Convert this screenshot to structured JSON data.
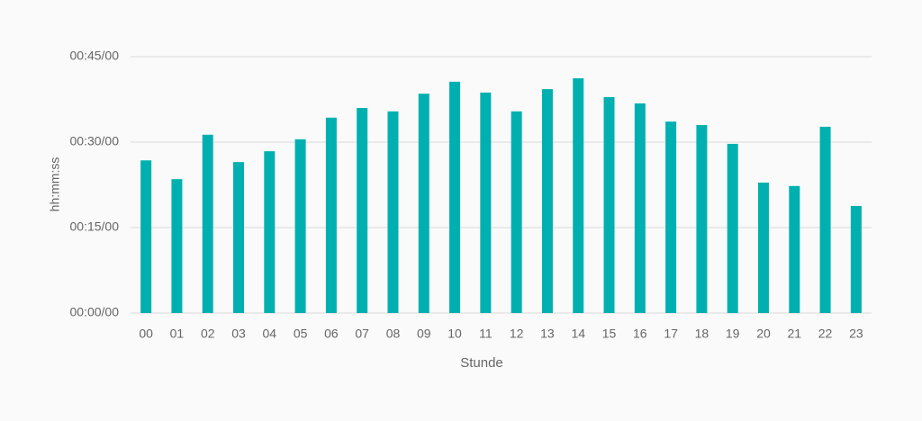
{
  "chart_data": {
    "type": "bar",
    "x_label": "Stunde",
    "y_label": "hh:mm:ss",
    "categories": [
      "00",
      "01",
      "02",
      "03",
      "04",
      "05",
      "06",
      "07",
      "08",
      "09",
      "10",
      "11",
      "12",
      "13",
      "14",
      "15",
      "16",
      "17",
      "18",
      "19",
      "20",
      "21",
      "22",
      "23"
    ],
    "values": [
      26.8,
      23.5,
      31.3,
      26.5,
      28.4,
      30.5,
      34.3,
      36.0,
      35.4,
      38.5,
      40.6,
      38.7,
      35.4,
      39.3,
      41.2,
      37.9,
      36.8,
      33.6,
      33.0,
      29.7,
      22.9,
      22.3,
      32.7,
      18.8
    ],
    "color": "#00b0b0",
    "ylim": [
      0,
      45
    ],
    "yticks": [
      {
        "value": 0,
        "label": "00:00/00"
      },
      {
        "value": 15,
        "label": "00:15/00"
      },
      {
        "value": 30,
        "label": "00:30/00"
      },
      {
        "value": 45,
        "label": "00:45/00"
      }
    ],
    "grid": true
  }
}
